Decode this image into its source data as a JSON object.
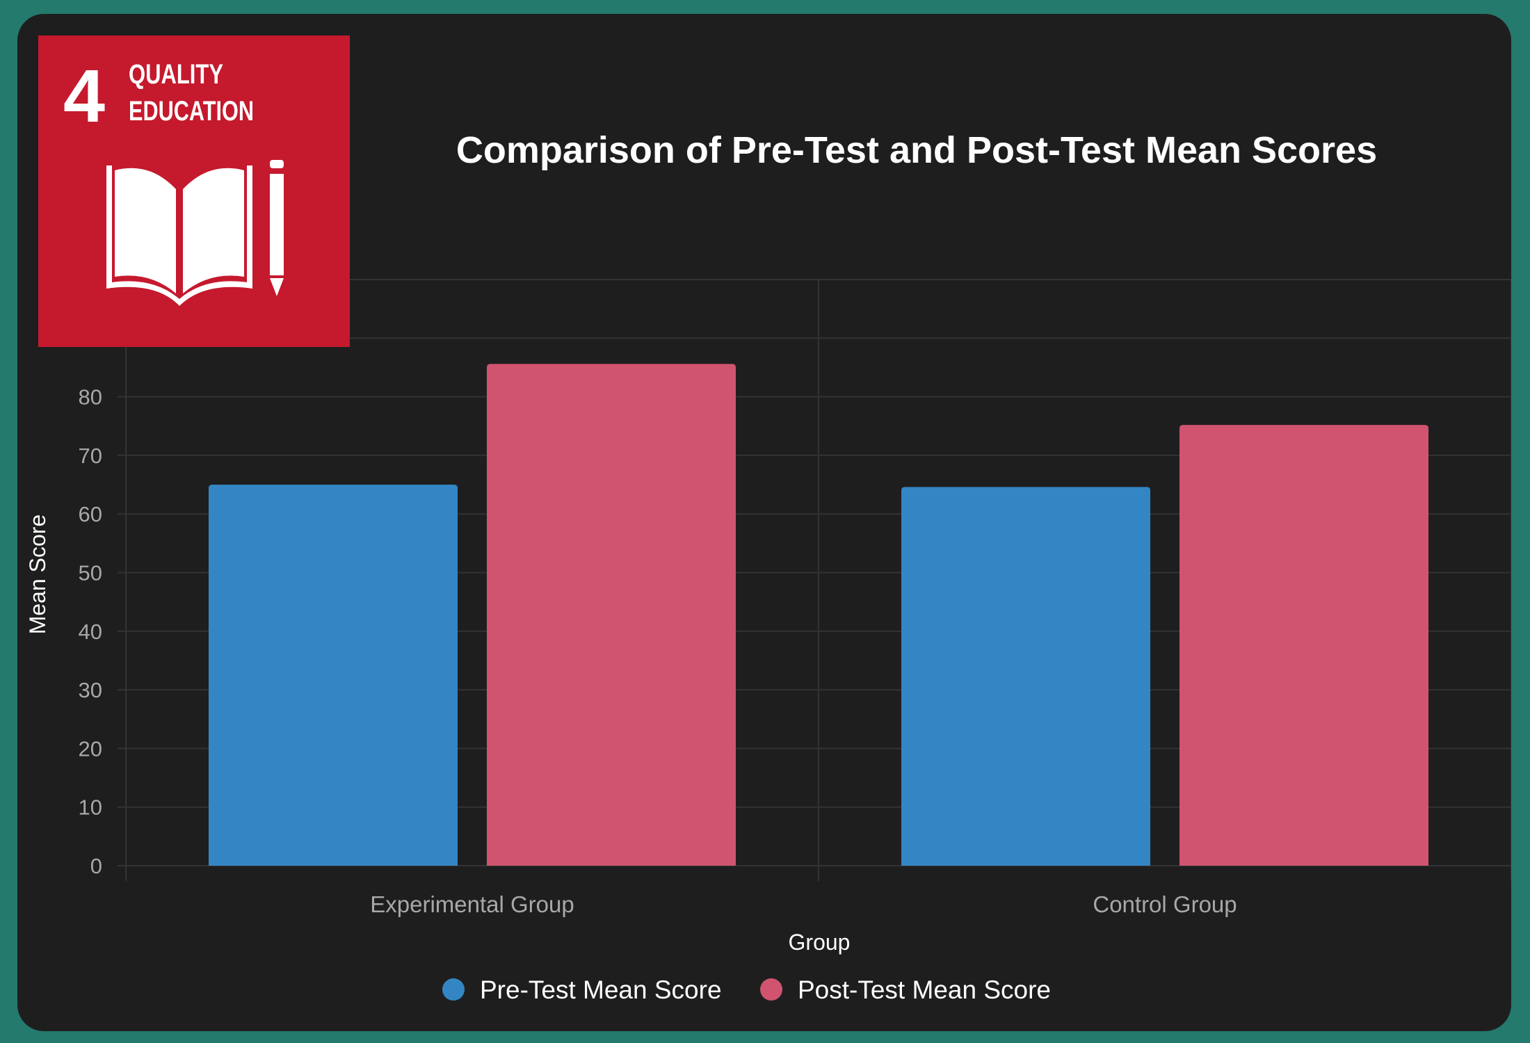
{
  "colors": {
    "frame_border": "#247a6c",
    "background": "#1e1e1f",
    "grid": "#333335",
    "logo_red": "#c5192d",
    "pre_test": "#3386c3",
    "post_test": "#d0546f"
  },
  "logo": {
    "number": "4",
    "line1": "QUALITY",
    "line2": "EDUCATION",
    "icon": "book-and-pencil-icon"
  },
  "chart_data": {
    "type": "bar",
    "title": "Comparison of Pre-Test and Post-Test Mean Scores",
    "xlabel": "Group",
    "ylabel": "Mean Score",
    "categories": [
      "Experimental Group",
      "Control Group"
    ],
    "series": [
      {
        "name": "Pre-Test Mean Score",
        "values": [
          65,
          64.6
        ],
        "color": "#3386c3"
      },
      {
        "name": "Post-Test Mean Score",
        "values": [
          85.6,
          75.2
        ],
        "color": "#d0546f"
      }
    ],
    "yticks": [
      "0",
      "10",
      "20",
      "30",
      "40",
      "50",
      "60",
      "70",
      "80"
    ],
    "ylim": [
      0,
      100
    ],
    "grid": true,
    "legend_position": "bottom-center"
  }
}
